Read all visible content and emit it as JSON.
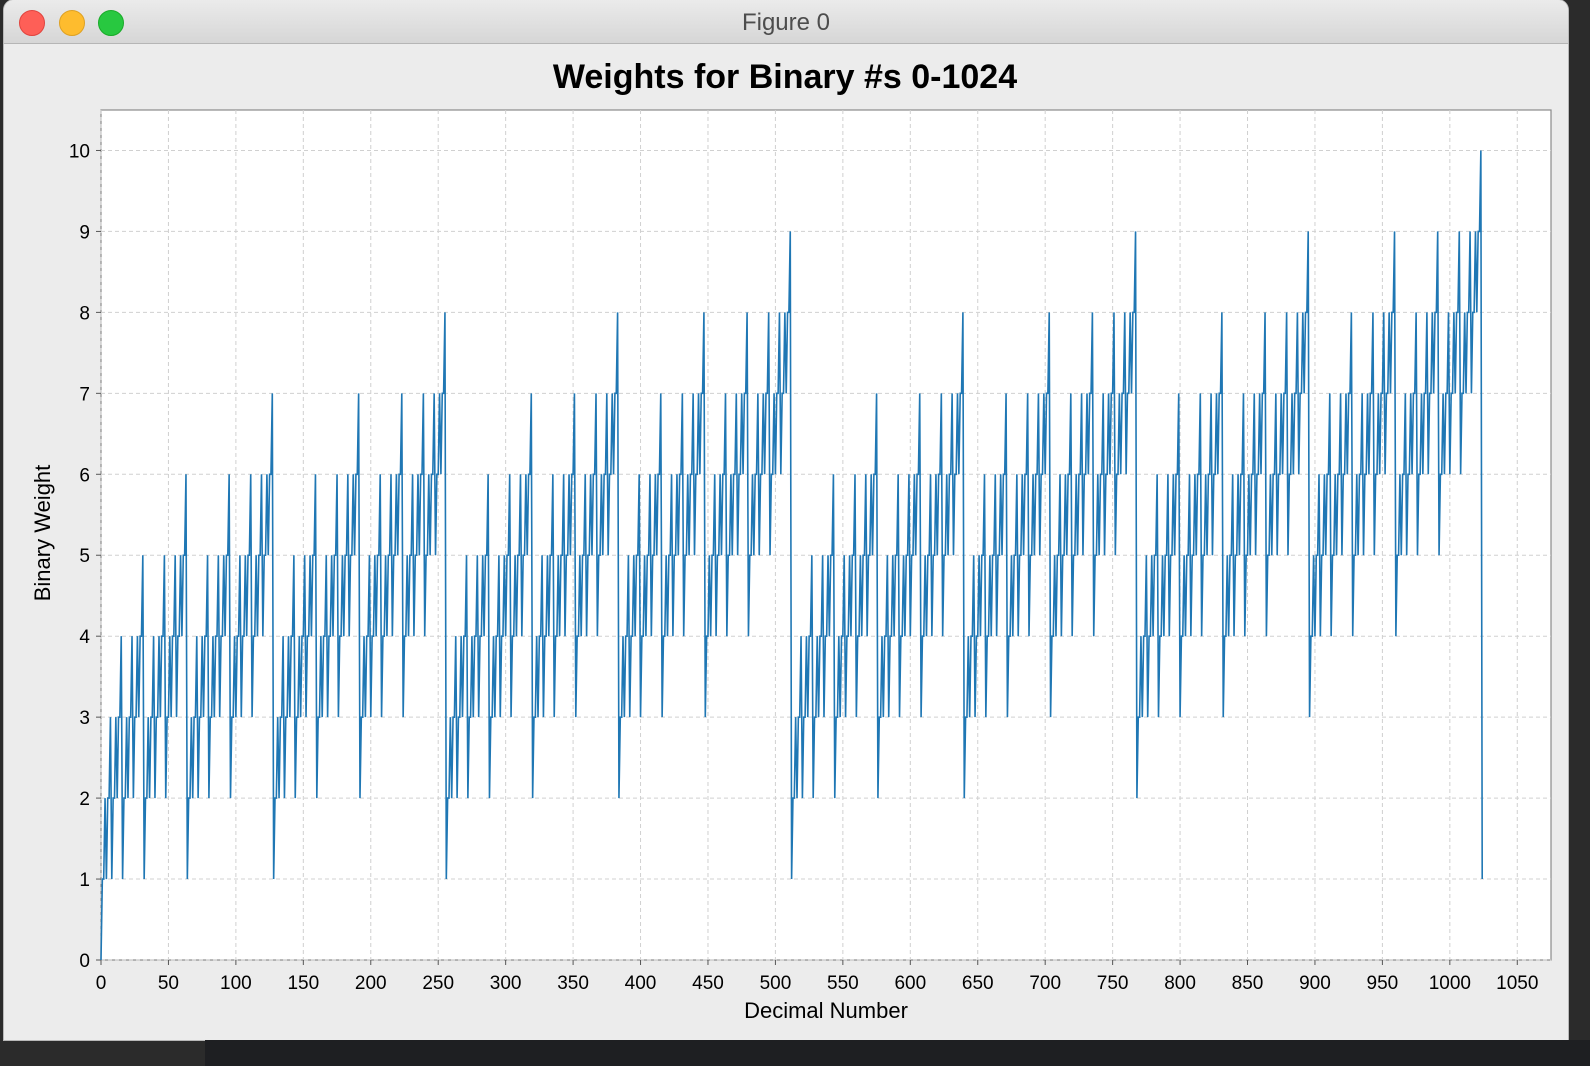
{
  "window": {
    "title": "Figure 0"
  },
  "chart_data": {
    "type": "line",
    "title": "Weights for Binary #s 0-1024",
    "xlabel": "Decimal Number",
    "ylabel": "Binary Weight",
    "xlim": [
      0,
      1075
    ],
    "ylim": [
      0,
      10.5
    ],
    "xticks": [
      0,
      50,
      100,
      150,
      200,
      250,
      300,
      350,
      400,
      450,
      500,
      550,
      600,
      650,
      700,
      750,
      800,
      850,
      900,
      950,
      1000,
      1050
    ],
    "yticks": [
      0,
      1,
      2,
      3,
      4,
      5,
      6,
      7,
      8,
      9,
      10
    ],
    "grid": true,
    "x_range": [
      0,
      1024
    ],
    "series": [
      {
        "rule": "binary weight (number of 1 bits) of each integer n from 0 to 1024",
        "color": "#1f77b4"
      }
    ]
  }
}
